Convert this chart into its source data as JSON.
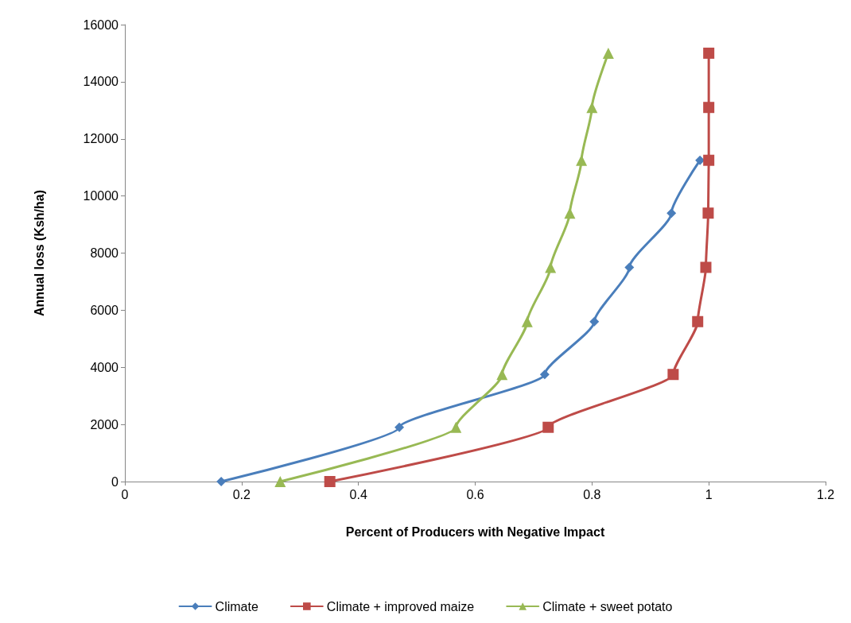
{
  "chart_data": {
    "type": "line",
    "xlabel": "Percent of Producers with Negative Impact",
    "ylabel": "Annual loss (Ksh/ha)",
    "xlim": [
      0,
      1.2
    ],
    "xticks": [
      0,
      0.2,
      0.4,
      0.6,
      0.8,
      1,
      1.2
    ],
    "ylim": [
      0,
      16000
    ],
    "yticks": [
      0,
      2000,
      4000,
      6000,
      8000,
      10000,
      12000,
      14000,
      16000
    ],
    "grid": false,
    "legend": "bottom",
    "series": [
      {
        "name": "Climate",
        "color": "#4a7ebb",
        "marker": "diamond",
        "x": [
          0.165,
          0.47,
          0.719,
          0.804,
          0.864,
          0.936,
          0.985
        ],
        "values": [
          0,
          1900,
          3750,
          5600,
          7500,
          9400,
          11250
        ]
      },
      {
        "name": "Climate + improved maize",
        "color": "#be4b48",
        "marker": "square",
        "x": [
          0.351,
          0.725,
          0.939,
          0.981,
          0.995,
          0.999,
          1,
          1,
          1
        ],
        "values": [
          0,
          1900,
          3750,
          5600,
          7500,
          9400,
          11250,
          13100,
          15000
        ]
      },
      {
        "name": "Climate + sweet potato",
        "color": "#98b954",
        "marker": "triangle",
        "x": [
          0.266,
          0.567,
          0.646,
          0.689,
          0.729,
          0.762,
          0.782,
          0.8,
          0.828
        ],
        "values": [
          0,
          1900,
          3750,
          5600,
          7500,
          9400,
          11250,
          13100,
          15000
        ]
      }
    ]
  }
}
